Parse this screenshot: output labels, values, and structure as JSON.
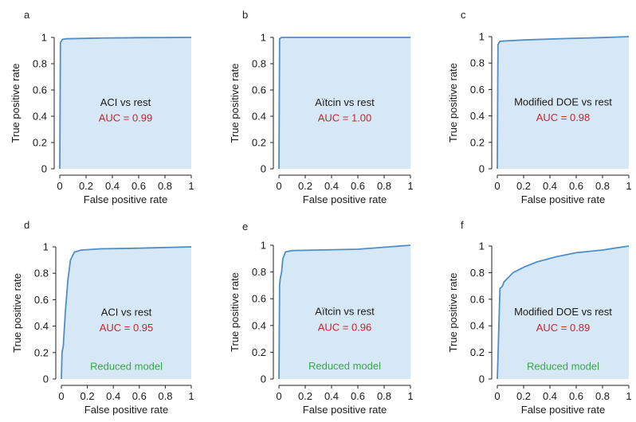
{
  "colors": {
    "curve": "#4f8fc7",
    "fill": "#d6e7f5",
    "auc_text": "#c0272d",
    "reduced_text": "#3aa84a",
    "axis": "#222222"
  },
  "chart_data": [
    {
      "panel_label": "a",
      "type": "area",
      "title": "ACI vs rest",
      "auc": "AUC = 0.99",
      "note": "",
      "xlabel": "False positive rate",
      "ylabel": "True positive rate",
      "xlim": [
        0,
        1
      ],
      "ylim": [
        0,
        1
      ],
      "xticks": [
        0,
        0.2,
        0.4,
        0.6,
        0.8,
        1
      ],
      "xtick_labels": [
        "0",
        "0.2",
        "0.4",
        "0.6",
        "0.8",
        "1"
      ],
      "yticks": [
        0,
        0.2,
        0.4,
        0.6,
        0.8,
        1
      ],
      "ytick_labels": [
        "0",
        "0.2",
        "0.4",
        "0.6",
        "0.8",
        "1"
      ],
      "x": [
        0,
        0.005,
        0.02,
        0.05,
        0.3,
        0.6,
        1
      ],
      "y": [
        0,
        0.96,
        0.985,
        0.99,
        0.995,
        0.998,
        1
      ]
    },
    {
      "panel_label": "b",
      "type": "area",
      "title": "Aïtcin vs rest",
      "auc": "AUC = 1.00",
      "note": "",
      "xlabel": "False positive rate",
      "ylabel": "True positive rate",
      "xlim": [
        0,
        1
      ],
      "ylim": [
        0,
        1
      ],
      "xticks": [
        0,
        0.2,
        0.4,
        0.6,
        0.8,
        1
      ],
      "xtick_labels": [
        "0",
        "0.2",
        "0.4",
        "0.6",
        "0.8",
        "1"
      ],
      "yticks": [
        0,
        0.2,
        0.4,
        0.6,
        0.8,
        1
      ],
      "ytick_labels": [
        "0",
        "0.2",
        "0.4",
        "0.6",
        "0.8",
        "1"
      ],
      "x": [
        0,
        0.005,
        0.02,
        1
      ],
      "y": [
        0,
        0.99,
        1,
        1
      ]
    },
    {
      "panel_label": "c",
      "type": "area",
      "title": "Modified DOE vs rest",
      "auc": "AUC = 0.98",
      "note": "",
      "xlabel": "False positive rate",
      "ylabel": "True positive rate",
      "xlim": [
        0,
        1
      ],
      "ylim": [
        0,
        1
      ],
      "xticks": [
        0,
        0.2,
        0.4,
        0.6,
        0.8,
        1
      ],
      "xtick_labels": [
        "0",
        "0.2",
        "0.4",
        "0.6",
        "0.8",
        "1"
      ],
      "yticks": [
        0,
        0.2,
        0.4,
        0.6,
        0.8,
        1
      ],
      "ytick_labels": [
        "0",
        "0.2",
        "0.4",
        "0.6",
        "0.8",
        "1"
      ],
      "x": [
        0,
        0.005,
        0.02,
        0.2,
        0.5,
        0.8,
        1
      ],
      "y": [
        0,
        0.94,
        0.965,
        0.975,
        0.985,
        0.993,
        1
      ]
    },
    {
      "panel_label": "d",
      "type": "area",
      "title": "ACI vs rest",
      "auc": "AUC = 0.95",
      "note": "Reduced model",
      "xlabel": "False positive rate",
      "ylabel": "True positive rate",
      "xlim": [
        0,
        1
      ],
      "ylim": [
        0,
        1
      ],
      "xticks": [
        0,
        0.2,
        0.4,
        0.6,
        0.8,
        1
      ],
      "xtick_labels": [
        "0",
        "0.2",
        "0.4",
        "0.6",
        "0.8",
        "1"
      ],
      "yticks": [
        0,
        0.2,
        0.4,
        0.6,
        0.8,
        1
      ],
      "ytick_labels": [
        "0",
        "0.2",
        "0.4",
        "0.6",
        "0.8",
        "1"
      ],
      "x": [
        0,
        0.005,
        0.015,
        0.03,
        0.05,
        0.07,
        0.1,
        0.15,
        0.3,
        0.6,
        1
      ],
      "y": [
        0,
        0.2,
        0.25,
        0.5,
        0.75,
        0.9,
        0.96,
        0.975,
        0.985,
        0.99,
        1
      ]
    },
    {
      "panel_label": "e",
      "type": "area",
      "title": "Aïtcin vs rest",
      "auc": "AUC = 0.96",
      "note": "Reduced model",
      "xlabel": "False positive rate",
      "ylabel": "True positive rate",
      "xlim": [
        0,
        1
      ],
      "ylim": [
        0,
        1
      ],
      "xticks": [
        0,
        0.2,
        0.4,
        0.6,
        0.8,
        1
      ],
      "xtick_labels": [
        "0",
        "0.2",
        "0.4",
        "0.6",
        "0.8",
        "1"
      ],
      "yticks": [
        0,
        0.2,
        0.4,
        0.6,
        0.8,
        1
      ],
      "ytick_labels": [
        "0",
        "0.2",
        "0.4",
        "0.6",
        "0.8",
        "1"
      ],
      "x": [
        0,
        0.005,
        0.01,
        0.02,
        0.03,
        0.05,
        0.1,
        0.6,
        0.8,
        1
      ],
      "y": [
        0,
        0.7,
        0.75,
        0.8,
        0.9,
        0.95,
        0.96,
        0.97,
        0.985,
        1
      ]
    },
    {
      "panel_label": "f",
      "type": "area",
      "title": "Modified DOE vs rest",
      "auc": "AUC = 0.89",
      "note": "Reduced model",
      "xlabel": "False positive rate",
      "ylabel": "True positive rate",
      "xlim": [
        0,
        1
      ],
      "ylim": [
        0,
        1
      ],
      "xticks": [
        0,
        0.2,
        0.4,
        0.6,
        0.8,
        1
      ],
      "xtick_labels": [
        "0",
        "0.2",
        "0.4",
        "0.6",
        "0.8",
        "1"
      ],
      "yticks": [
        0,
        0.2,
        0.4,
        0.6,
        0.8,
        1
      ],
      "ytick_labels": [
        "0",
        "0.2",
        "0.4",
        "0.6",
        "0.8",
        "1"
      ],
      "x": [
        0,
        0.02,
        0.04,
        0.05,
        0.08,
        0.12,
        0.2,
        0.3,
        0.45,
        0.6,
        0.8,
        1
      ],
      "y": [
        0,
        0.68,
        0.7,
        0.73,
        0.76,
        0.8,
        0.84,
        0.88,
        0.92,
        0.95,
        0.97,
        1
      ]
    }
  ]
}
